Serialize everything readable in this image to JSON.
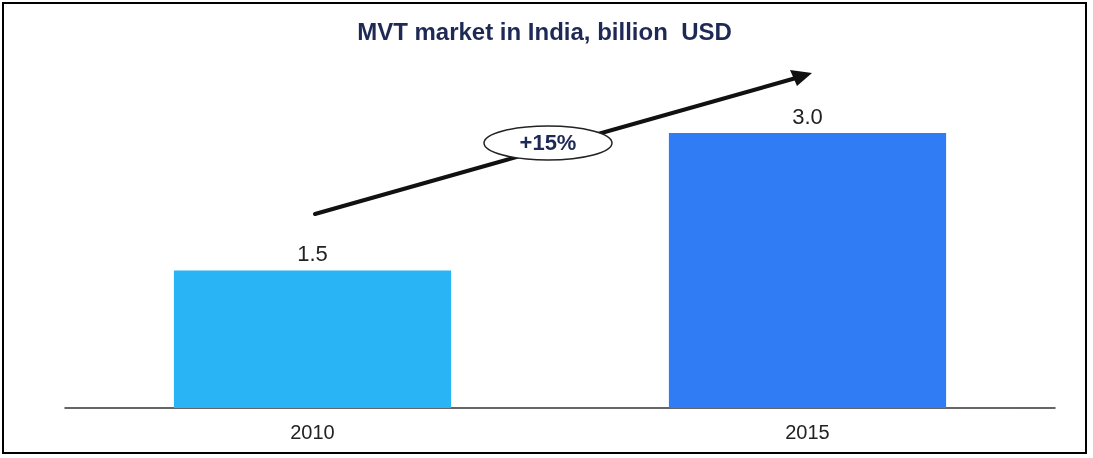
{
  "chart_data": {
    "type": "bar",
    "title": "MVT market in India, billion  USD",
    "categories": [
      "2010",
      "2015"
    ],
    "values": [
      1.5,
      3.0
    ],
    "colors": [
      "#29b4f6",
      "#2f7cf4"
    ],
    "value_labels": [
      "1.5",
      "3.0"
    ],
    "annotations": [
      "+15%"
    ]
  }
}
